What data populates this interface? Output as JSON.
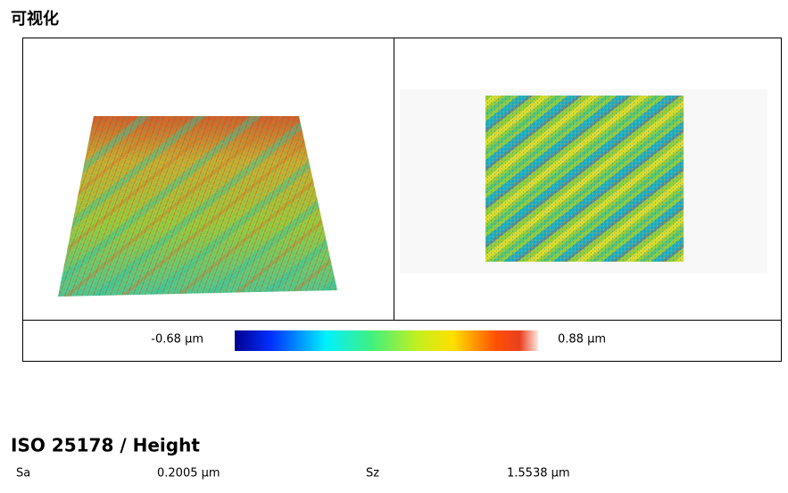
{
  "section_title": "可视化",
  "colorbar": {
    "min_label": "-0.68 µm",
    "max_label": "0.88 µm"
  },
  "parameters": {
    "title": "ISO 25178 / Height",
    "rows": [
      [
        "Sa",
        "0.2005 µm",
        "Sz",
        "1.5538 µm"
      ]
    ]
  }
}
